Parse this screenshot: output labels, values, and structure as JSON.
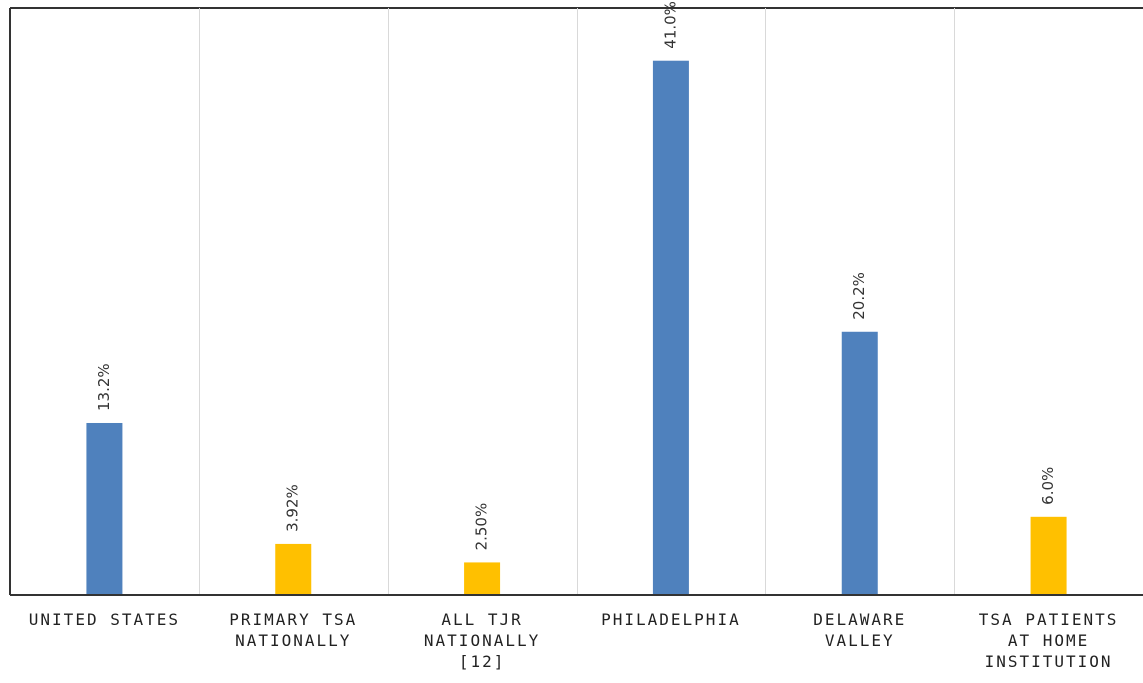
{
  "chart_data": {
    "type": "bar",
    "title": "",
    "xlabel": "",
    "ylabel": "",
    "ylim": [
      0,
      45
    ],
    "grid": "vertical category separators",
    "categories": [
      "UNITED STATES",
      "PRIMARY TSA NATIONALLY",
      "ALL TJR NATIONALLY [12]",
      "PHILADELPHIA",
      "DELAWARE VALLEY",
      "TSA PATIENTS AT HOME INSTITUTION"
    ],
    "values": [
      13.2,
      3.92,
      2.5,
      41.0,
      20.2,
      6.0
    ],
    "data_labels": [
      "13.2%",
      "3.92%",
      "2.50%",
      "41.0%",
      "20.2%",
      "6.0%"
    ],
    "bar_colors": [
      "#4F81BD",
      "#FFC000",
      "#FFC000",
      "#4F81BD",
      "#4F81BD",
      "#FFC000"
    ],
    "label_orientation": "rotated vertical"
  }
}
